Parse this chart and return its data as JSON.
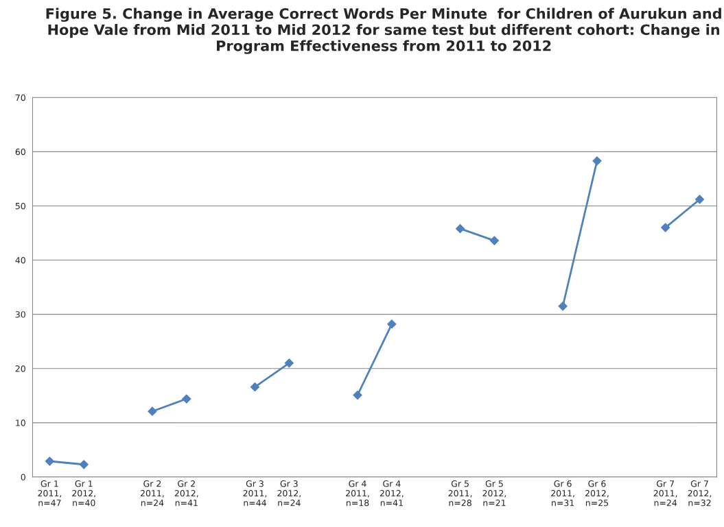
{
  "chart_data": {
    "type": "line",
    "title": "Figure 5. Change in Average Correct Words Per Minute  for Children of Aurukun and Hope Vale from Mid 2011 to Mid 2012 for same test but different cohort: Change in Program Effectiveness from 2011 to 2012",
    "categories": [
      "Gr 1\n2011,\nn=47",
      "Gr 1\n2012,\nn=40",
      null,
      "Gr 2\n2011,\nn=24",
      "Gr 2\n2012,\nn=41",
      null,
      "Gr 3\n2011,\nn=44",
      "Gr 3\n2012,\nn=24",
      null,
      "Gr 4\n2011,\nn=18",
      "Gr 4\n2012,\nn=41",
      null,
      "Gr 5\n2011,\nn=28",
      "Gr 5\n2012,\nn=21",
      null,
      "Gr 6\n2011,\nn=31",
      "Gr 6\n2012,\nn=25",
      null,
      "Gr 7\n2011,\nn=24",
      "Gr 7\n2012,\nn=32"
    ],
    "series": [
      {
        "color": "#4f81bd",
        "values": [
          2.9,
          2.3,
          null,
          12.1,
          14.4,
          null,
          16.6,
          21.0,
          null,
          15.1,
          28.2,
          null,
          45.8,
          43.6,
          null,
          31.5,
          58.3,
          null,
          46.0,
          51.2
        ]
      }
    ],
    "ylim": [
      0,
      70
    ],
    "yticks": [
      0,
      10,
      20,
      30,
      40,
      50,
      60,
      70
    ],
    "grid": "y",
    "marker": "diamond",
    "line_style": "solid",
    "legend": false
  }
}
